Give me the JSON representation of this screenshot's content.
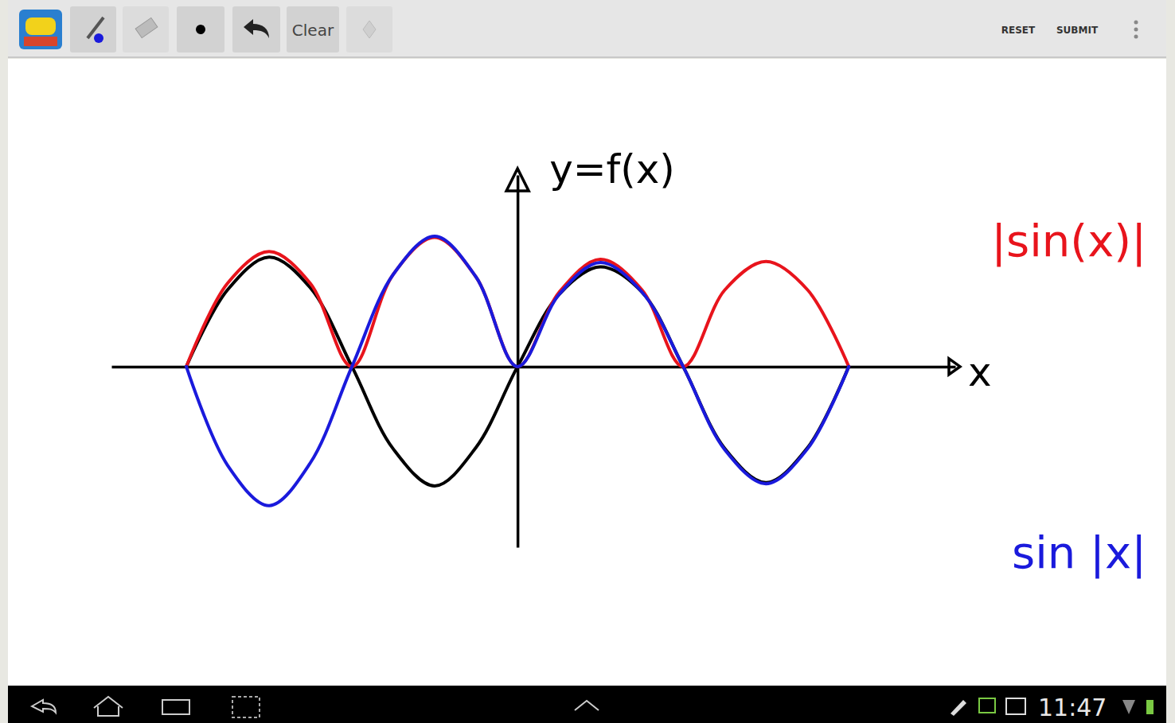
{
  "app": {
    "toolbar_button": "Clear",
    "actions": [
      "RESET",
      "SUBMIT"
    ],
    "clock": "11:47"
  },
  "chart_data": {
    "type": "line",
    "y_label": "y=f(x)",
    "x_label": "x",
    "x": [
      -6.28,
      -5.5,
      -4.71,
      -3.93,
      -3.14,
      -2.36,
      -1.57,
      -0.79,
      0,
      0.79,
      1.57,
      2.36,
      3.14,
      3.93,
      4.71,
      5.5,
      6.28
    ],
    "xlim": [
      -7.7,
      8.3
    ],
    "ylim": [
      -1.65,
      1.75
    ],
    "tick_labels": false,
    "grid": false,
    "legend": "right",
    "series": [
      {
        "color": "#000000",
        "values": [
          0,
          0.7,
          1.0,
          0.72,
          0,
          -0.75,
          -1.09,
          -0.74,
          0,
          0.66,
          0.91,
          0.68,
          0,
          -0.75,
          -1.06,
          -0.74,
          0
        ]
      },
      {
        "name": "|sin(x)|",
        "color": "#e8141c",
        "values": [
          0,
          0.76,
          1.05,
          0.76,
          0,
          0.84,
          1.18,
          0.82,
          0,
          0.68,
          0.98,
          0.7,
          0,
          0.7,
          0.96,
          0.7,
          0
        ]
      },
      {
        "name": "sin |x|",
        "color": "#1a1adc",
        "values": [
          0,
          -0.9,
          -1.27,
          -0.88,
          0,
          0.84,
          1.19,
          0.82,
          0,
          0.66,
          0.95,
          0.68,
          0,
          -0.76,
          -1.07,
          -0.75,
          0
        ]
      }
    ]
  }
}
